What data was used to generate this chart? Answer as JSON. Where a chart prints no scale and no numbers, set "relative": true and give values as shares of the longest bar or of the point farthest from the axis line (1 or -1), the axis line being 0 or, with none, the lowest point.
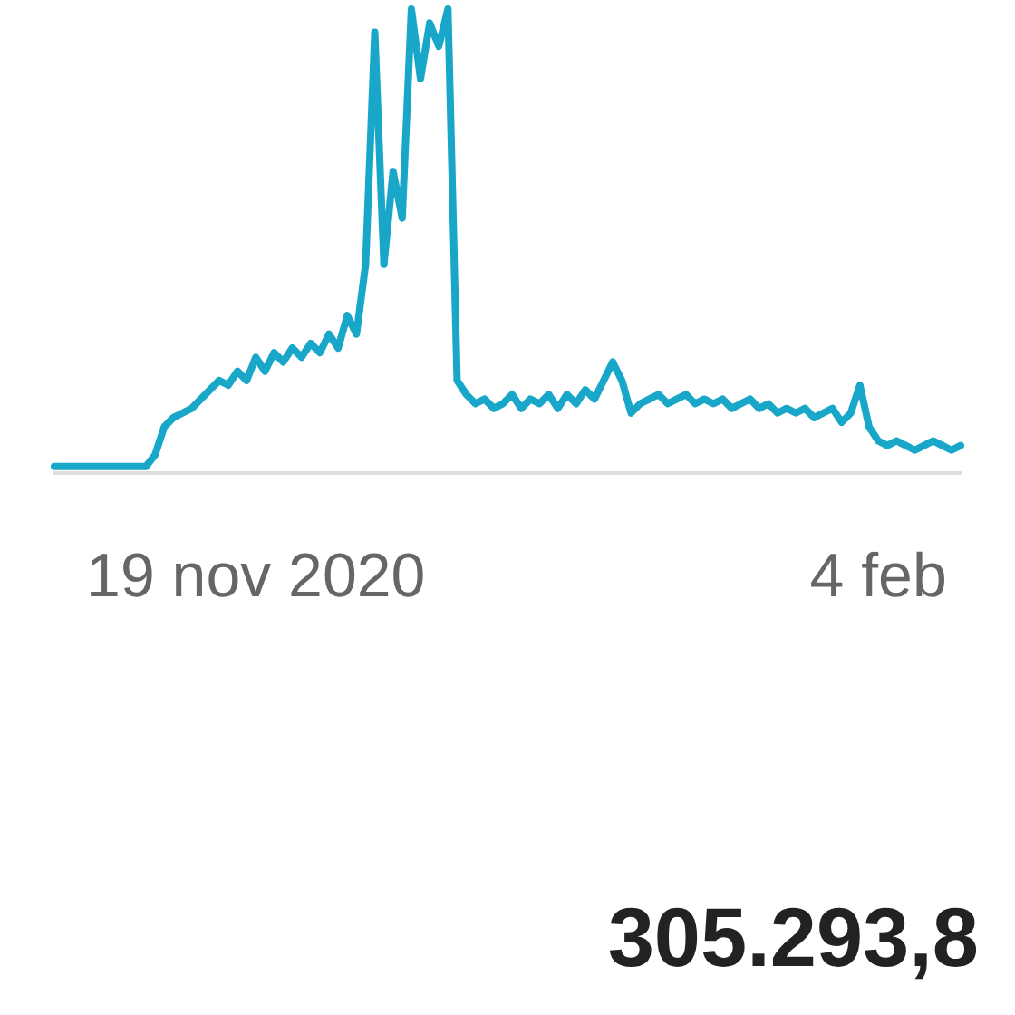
{
  "chart_data": {
    "type": "line",
    "relative": true,
    "categories": [
      null,
      null,
      null,
      null,
      null,
      null,
      null,
      null,
      null,
      null,
      null,
      null,
      null,
      null,
      null,
      null,
      null,
      null,
      null,
      null,
      null,
      null,
      "19 nov 2020",
      null,
      null,
      null,
      null,
      null,
      null,
      null,
      null,
      null,
      null,
      null,
      null,
      null,
      null,
      null,
      null,
      null,
      null,
      null,
      null,
      null,
      null,
      null,
      null,
      null,
      null,
      null,
      null,
      null,
      null,
      null,
      null,
      null,
      null,
      null,
      null,
      null,
      null,
      null,
      null,
      null,
      null,
      null,
      null,
      null,
      null,
      null,
      null,
      null,
      null,
      null,
      null,
      null,
      null,
      null,
      null,
      null,
      null,
      null,
      null,
      null,
      null,
      null,
      null,
      null,
      null,
      null,
      "4 feb",
      null,
      null,
      null,
      null,
      null,
      null,
      null,
      null,
      null
    ],
    "series": [
      {
        "color": "#19a7c9",
        "values": [
          0.015,
          0.015,
          0.015,
          0.015,
          0.015,
          0.015,
          0.015,
          0.015,
          0.015,
          0.015,
          0.015,
          0.04,
          0.1,
          0.12,
          0.13,
          0.14,
          0.16,
          0.18,
          0.2,
          0.19,
          0.22,
          0.2,
          0.25,
          0.22,
          0.26,
          0.24,
          0.27,
          0.25,
          0.28,
          0.26,
          0.3,
          0.27,
          0.34,
          0.3,
          0.45,
          0.95,
          0.45,
          0.65,
          0.55,
          1,
          0.85,
          0.97,
          0.92,
          1,
          0.2,
          0.17,
          0.15,
          0.16,
          0.14,
          0.15,
          0.17,
          0.14,
          0.16,
          0.15,
          0.17,
          0.14,
          0.17,
          0.15,
          0.18,
          0.16,
          0.2,
          0.24,
          0.2,
          0.13,
          0.15,
          0.16,
          0.17,
          0.15,
          0.16,
          0.17,
          0.15,
          0.16,
          0.15,
          0.16,
          0.14,
          0.15,
          0.16,
          0.14,
          0.15,
          0.13,
          0.14,
          0.13,
          0.14,
          0.12,
          0.13,
          0.14,
          0.11,
          0.13,
          0.19,
          0.1,
          0.07,
          0.06,
          0.07,
          0.06,
          0.05,
          0.06,
          0.07,
          0.06,
          0.05,
          0.06
        ]
      }
    ],
    "legend": false,
    "annotations": [
      "305.293,8"
    ]
  }
}
